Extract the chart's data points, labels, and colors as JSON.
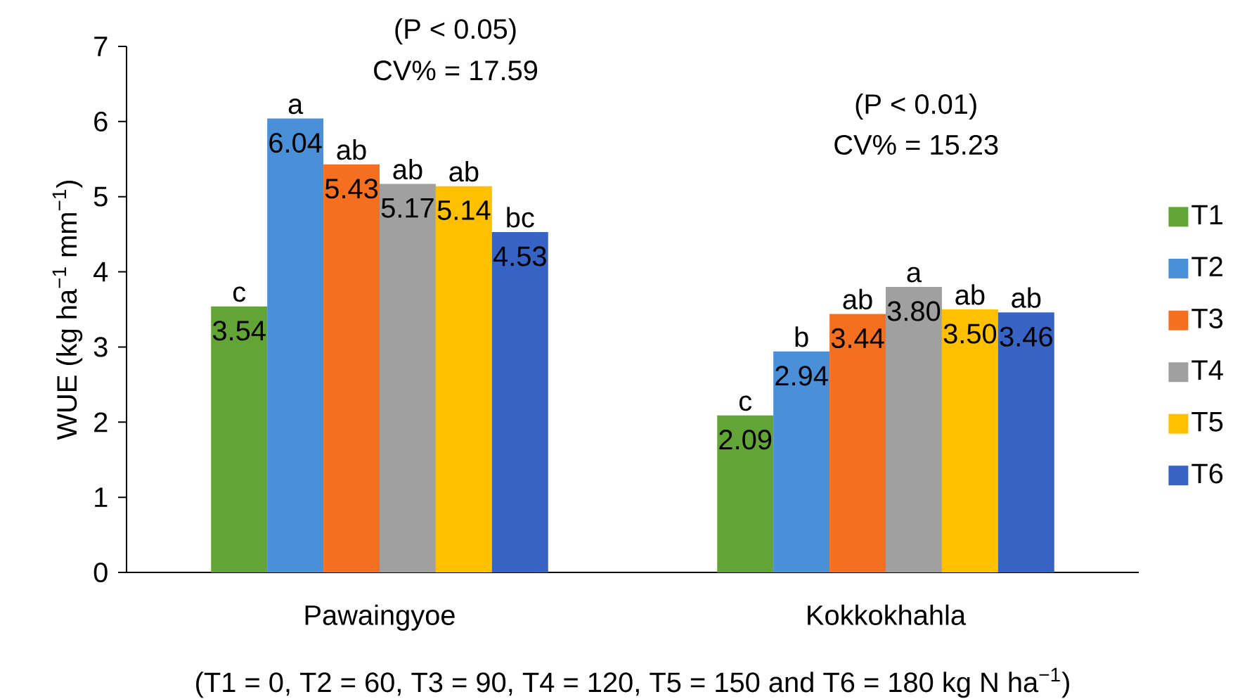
{
  "chart_data": {
    "type": "bar",
    "ylabel": "WUE (kg ha$^{−1}$ mm$^{−1}$)",
    "categories": [
      "Pawaingyoe",
      "Kokkokhahla"
    ],
    "series": [
      {
        "name": "T1",
        "color": "#62a536",
        "values": [
          3.54,
          2.09
        ],
        "value_labels": [
          "3.54",
          "2.09"
        ]
      },
      {
        "name": "T2",
        "color": "#4a90d9",
        "values": [
          6.04,
          2.94
        ],
        "value_labels": [
          "6.04",
          "2.94"
        ]
      },
      {
        "name": "T3",
        "color": "#f47020",
        "values": [
          5.43,
          3.44
        ],
        "value_labels": [
          "5.43",
          "3.44"
        ]
      },
      {
        "name": "T4",
        "color": "#a0a0a0",
        "values": [
          5.17,
          3.8
        ],
        "value_labels": [
          "5.17",
          "3.80"
        ]
      },
      {
        "name": "T5",
        "color": "#ffc000",
        "values": [
          5.14,
          3.5
        ],
        "value_labels": [
          "5.14",
          "3.50"
        ]
      },
      {
        "name": "T6",
        "color": "#3764c4",
        "values": [
          4.53,
          3.46
        ],
        "value_labels": [
          "4.53",
          "3.46"
        ]
      }
    ],
    "ylim": [
      0,
      7
    ],
    "yticks": [
      0,
      1,
      2,
      3,
      4,
      5,
      6,
      7
    ],
    "legend": "right",
    "grid": false,
    "annotations": [
      "c",
      "a",
      "ab",
      "ab",
      "ab",
      "bc",
      "c",
      "b",
      "ab",
      "a",
      "ab",
      "ab",
      "(P < 0.05)",
      "CV% = 17.59",
      "(P < 0.01)",
      "CV% = 15.23",
      "(T1 = 0, T2 = 60, T3 = 90, T4 = 120, T5 = 150 and T6 = 180 kg N ha$^{−1}$)"
    ]
  }
}
